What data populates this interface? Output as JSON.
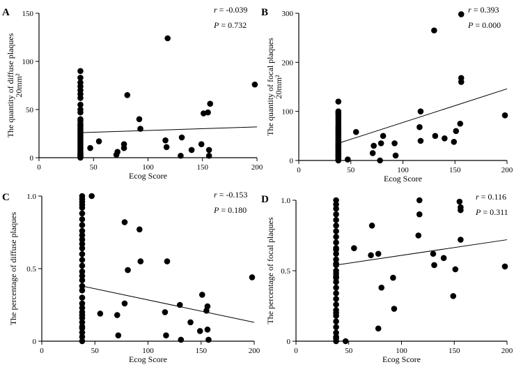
{
  "chart_data": [
    {
      "type": "scatter",
      "panel": "A",
      "xlabel": "Ecog Score",
      "ylabel": "The quantity of diffuse plaques",
      "ylabel_unit": "20mm²",
      "xlim": [
        0,
        200
      ],
      "ylim": [
        0,
        150
      ],
      "xticks": [
        0,
        50,
        100,
        150,
        200
      ],
      "yticks": [
        0,
        50,
        100,
        150
      ],
      "stats": {
        "r_label": "r",
        "r_value": "= -0.039",
        "p_label": "P",
        "p_value": "= 0.732"
      },
      "fit_line": {
        "x": [
          38,
          200
        ],
        "y": [
          26,
          32
        ]
      },
      "x": [
        38,
        38,
        38,
        38,
        38,
        38,
        38,
        38,
        38,
        38,
        38,
        38,
        38,
        38,
        38,
        38,
        38,
        38,
        38,
        38,
        38,
        38,
        38,
        38,
        38,
        38,
        38,
        38,
        38,
        38,
        38,
        38,
        38,
        47,
        55,
        71,
        72,
        78,
        78,
        81,
        92,
        93,
        116,
        117,
        118,
        130,
        131,
        140,
        149,
        151,
        155,
        156,
        156,
        157,
        198
      ],
      "y": [
        0,
        1,
        2,
        3,
        4,
        5,
        7,
        9,
        11,
        13,
        15,
        17,
        19,
        21,
        23,
        25,
        27,
        29,
        31,
        33,
        35,
        38,
        40,
        47,
        50,
        55,
        62,
        66,
        70,
        74,
        78,
        83,
        90,
        10,
        17,
        3,
        6,
        10,
        14,
        65,
        40,
        30,
        18,
        11,
        124,
        2,
        21,
        8,
        14,
        46,
        47,
        8,
        2,
        56,
        76
      ]
    },
    {
      "type": "scatter",
      "panel": "B",
      "xlabel": "Ecog Score",
      "ylabel": "The quantity of focal plaques",
      "ylabel_unit": "20mm²",
      "xlim": [
        0,
        200
      ],
      "ylim": [
        0,
        300
      ],
      "xticks": [
        0,
        50,
        100,
        150,
        200
      ],
      "yticks": [
        0,
        100,
        200,
        300
      ],
      "stats": {
        "r_label": "r",
        "r_value": "= 0.393",
        "p_label": "P",
        "p_value": "= 0.000"
      },
      "fit_line": {
        "x": [
          38,
          200
        ],
        "y": [
          35,
          146
        ]
      },
      "x": [
        38,
        38,
        38,
        38,
        38,
        38,
        38,
        38,
        38,
        38,
        38,
        38,
        38,
        38,
        38,
        38,
        38,
        38,
        38,
        38,
        38,
        38,
        38,
        38,
        38,
        38,
        38,
        38,
        38,
        38,
        38,
        47,
        55,
        71,
        72,
        78,
        79,
        81,
        92,
        93,
        116,
        117,
        117,
        130,
        131,
        140,
        149,
        151,
        155,
        156,
        156,
        156,
        198
      ],
      "y": [
        0,
        2,
        5,
        8,
        10,
        13,
        16,
        19,
        22,
        25,
        28,
        32,
        35,
        38,
        42,
        46,
        50,
        54,
        58,
        62,
        66,
        70,
        75,
        80,
        85,
        90,
        95,
        100,
        120,
        96,
        30,
        2,
        58,
        15,
        30,
        0,
        35,
        50,
        35,
        10,
        68,
        40,
        100,
        265,
        50,
        45,
        38,
        60,
        75,
        298,
        168,
        160,
        92
      ]
    },
    {
      "type": "scatter",
      "panel": "C",
      "xlabel": "Ecog Score",
      "ylabel": "The percentage of diffuse plaques",
      "xlim": [
        0,
        200
      ],
      "ylim": [
        0,
        1.0
      ],
      "xticks": [
        0,
        50,
        100,
        150,
        200
      ],
      "yticks": [
        0,
        0.5,
        1.0
      ],
      "ytick_labels": [
        "0",
        "0.5",
        "1.0"
      ],
      "stats": {
        "r_label": "r",
        "r_value": "= -0.153",
        "p_label": "P",
        "p_value": "= 0.180"
      },
      "fit_line": {
        "x": [
          38,
          200
        ],
        "y": [
          0.38,
          0.13
        ]
      },
      "x": [
        38,
        38,
        38,
        38,
        38,
        38,
        38,
        38,
        38,
        38,
        38,
        38,
        38,
        38,
        38,
        38,
        38,
        38,
        38,
        38,
        38,
        38,
        38,
        38,
        38,
        38,
        38,
        38,
        38,
        38,
        38,
        38,
        38,
        47,
        55,
        71,
        72,
        78,
        78,
        81,
        92,
        93,
        116,
        117,
        118,
        130,
        131,
        140,
        149,
        151,
        155,
        156,
        156,
        157,
        198
      ],
      "y": [
        0,
        0.03,
        0.06,
        0.1,
        0.13,
        0.16,
        0.2,
        0.23,
        0.26,
        0.3,
        0.38,
        0.42,
        0.48,
        0.52,
        0.56,
        0.6,
        0.64,
        0.67,
        0.7,
        0.73,
        0.76,
        0.8,
        0.84,
        0.88,
        0.92,
        0.96,
        1.0,
        0.98,
        0.94,
        0.45,
        0.35,
        0.18,
        0.09,
        1.0,
        0.19,
        0.18,
        0.04,
        0.82,
        0.26,
        0.49,
        0.77,
        0.55,
        0.2,
        0.04,
        0.55,
        0.25,
        0.01,
        0.13,
        0.07,
        0.32,
        0.21,
        0.24,
        0.08,
        0.01,
        0.44
      ]
    },
    {
      "type": "scatter",
      "panel": "D",
      "xlabel": "Ecog Score",
      "ylabel": "The percentage of focal plaques",
      "xlim": [
        0,
        200
      ],
      "ylim": [
        0,
        1.0
      ],
      "xticks": [
        0,
        50,
        100,
        150,
        200
      ],
      "yticks": [
        0,
        0.5,
        1.0
      ],
      "ytick_labels": [
        "0",
        "0.5",
        "1.0"
      ],
      "stats": {
        "r_label": "r",
        "r_value": "= 0.116",
        "p_label": "P",
        "p_value": "= 0.311"
      },
      "fit_line": {
        "x": [
          38,
          200
        ],
        "y": [
          0.54,
          0.72
        ]
      },
      "x": [
        38,
        38,
        38,
        38,
        38,
        38,
        38,
        38,
        38,
        38,
        38,
        38,
        38,
        38,
        38,
        38,
        38,
        38,
        38,
        38,
        38,
        38,
        38,
        38,
        38,
        38,
        38,
        38,
        38,
        38,
        38,
        38,
        38,
        47,
        55,
        71,
        72,
        78,
        78,
        81,
        92,
        93,
        116,
        117,
        117,
        130,
        131,
        140,
        149,
        151,
        155,
        156,
        156,
        156,
        198
      ],
      "y": [
        0,
        0.03,
        0.06,
        0.1,
        0.14,
        0.18,
        0.22,
        0.26,
        0.3,
        0.34,
        0.38,
        0.42,
        0.46,
        0.5,
        0.54,
        0.58,
        0.62,
        0.66,
        0.7,
        0.74,
        0.78,
        0.82,
        0.86,
        0.9,
        0.94,
        0.97,
        1.0,
        0.65,
        0.55,
        0.48,
        0.45,
        0.2,
        0.02,
        0.0,
        0.66,
        0.61,
        0.82,
        0.62,
        0.09,
        0.38,
        0.45,
        0.23,
        0.75,
        0.9,
        1.0,
        0.62,
        0.54,
        0.59,
        0.32,
        0.51,
        0.99,
        0.93,
        0.95,
        0.72,
        0.53
      ]
    }
  ]
}
